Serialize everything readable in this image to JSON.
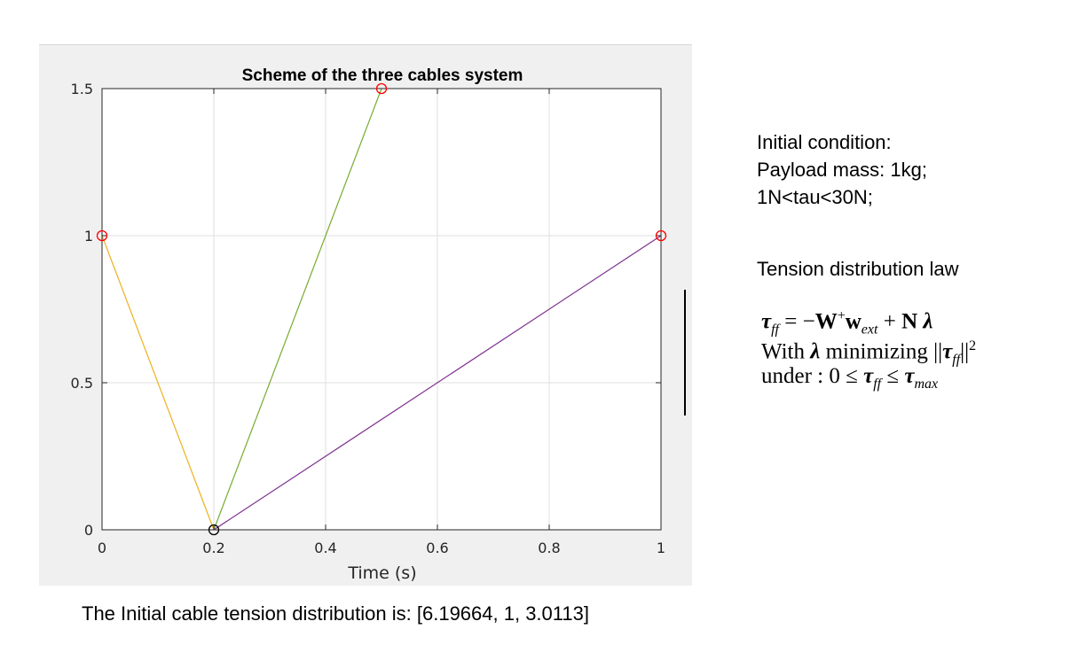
{
  "chart_data": {
    "type": "line",
    "title": "Scheme of the three cables system",
    "xlabel": "Time (s)",
    "ylabel": "",
    "xlim": [
      0,
      1
    ],
    "ylim": [
      0,
      1.5
    ],
    "xticks": [
      0,
      0.2,
      0.4,
      0.6,
      0.8,
      1
    ],
    "xtick_labels": [
      "0",
      "0.2",
      "0.4",
      "0.6",
      "0.8",
      "1"
    ],
    "yticks": [
      0,
      0.5,
      1,
      1.5
    ],
    "ytick_labels": [
      "0",
      "0.5",
      "1",
      "1.5"
    ],
    "grid": true,
    "series": [
      {
        "color": "#EDB120",
        "x": [
          0,
          0.2
        ],
        "y": [
          1,
          0
        ]
      },
      {
        "color": "#77AC30",
        "x": [
          0.2,
          0.5
        ],
        "y": [
          0,
          1.5
        ]
      },
      {
        "color": "#7E2F8E",
        "x": [
          0.2,
          1
        ],
        "y": [
          0,
          1
        ]
      }
    ],
    "markers": [
      {
        "role": "anchor",
        "color": "#FF0000",
        "x": 0,
        "y": 1
      },
      {
        "role": "anchor",
        "color": "#FF0000",
        "x": 0.5,
        "y": 1.5
      },
      {
        "role": "anchor",
        "color": "#FF0000",
        "x": 1,
        "y": 1
      },
      {
        "role": "payload",
        "color": "#000000",
        "x": 0.2,
        "y": 0
      }
    ]
  },
  "notes": {
    "lines": [
      "Initial condition:",
      "Payload mass: 1kg;",
      "1N<tau<30N;"
    ],
    "law_heading": "Tension distribution law",
    "formula": {
      "tau": "τ",
      "ff": "ff",
      "eq": " = −",
      "W": "W",
      "plus_sup": "+",
      "w": "w",
      "ext": "ext",
      "plusN": " + ",
      "N": "N",
      "lambda": "λ",
      "with": "With ",
      "minimizing": " minimizing ||",
      "norm_close": "||",
      "sq": "2",
      "under": "under : 0 ≤ ",
      "leq": " ≤ ",
      "max": "max"
    }
  },
  "caption": "The Initial cable tension distribution is: [6.19664, 1, 3.0113]"
}
